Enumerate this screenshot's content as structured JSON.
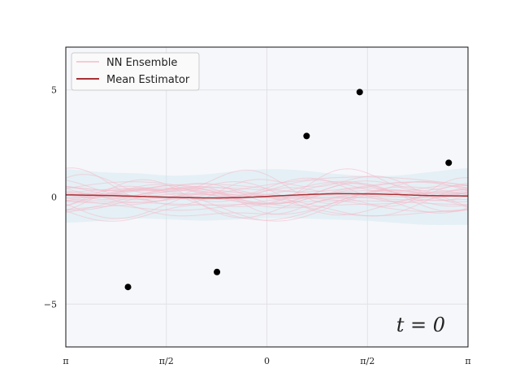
{
  "chart_data": {
    "type": "line",
    "x_tick_labels": [
      "π",
      "π/2",
      "0",
      "π/2",
      "π"
    ],
    "x_tick_values": [
      -3.14159,
      -1.5708,
      0,
      1.5708,
      3.14159
    ],
    "xlim": [
      -3.14159,
      3.14159
    ],
    "y_tick_labels": [
      "5",
      "0",
      "−5"
    ],
    "y_tick_values": [
      5,
      0,
      -5
    ],
    "ylim": [
      -7,
      7
    ],
    "grid": true,
    "background_color": "#f6f7fb",
    "legend_placement": "top-left",
    "annotation": "t = 0",
    "legend": [
      {
        "label": "NN Ensemble",
        "color": "#f4b9c9"
      },
      {
        "label": "Mean Estimator",
        "color": "#a83236"
      }
    ],
    "scatter_points": {
      "x": [
        -2.17,
        -0.78,
        0.62,
        1.45,
        2.84
      ],
      "y": [
        -4.2,
        -3.5,
        2.85,
        4.9,
        1.6
      ],
      "color": "#000000"
    },
    "mean_estimator": {
      "x": [
        -3.14159,
        -2.5,
        -2.0,
        -1.5,
        -1.0,
        -0.5,
        0.0,
        0.5,
        1.0,
        1.5,
        2.0,
        2.5,
        3.14159
      ],
      "y": [
        0.1,
        0.07,
        0.03,
        -0.01,
        -0.04,
        -0.03,
        0.03,
        0.1,
        0.15,
        0.15,
        0.12,
        0.07,
        0.05
      ]
    },
    "uncertainty_band": {
      "x": [
        -3.14159,
        -2.5,
        -2.0,
        -1.5,
        -1.0,
        -0.5,
        0.0,
        0.5,
        1.0,
        1.5,
        2.0,
        2.5,
        3.14159
      ],
      "upper": [
        1.3,
        1.15,
        1.1,
        1.0,
        1.05,
        1.2,
        1.3,
        1.25,
        1.1,
        1.0,
        1.0,
        1.15,
        1.35
      ],
      "lower": [
        -1.2,
        -1.1,
        -1.0,
        -1.05,
        -1.1,
        -1.05,
        -1.0,
        -1.0,
        -1.05,
        -1.1,
        -1.2,
        -1.3,
        -1.3
      ],
      "color": "#cfe6ee"
    },
    "ensemble_member_count": 30
  }
}
